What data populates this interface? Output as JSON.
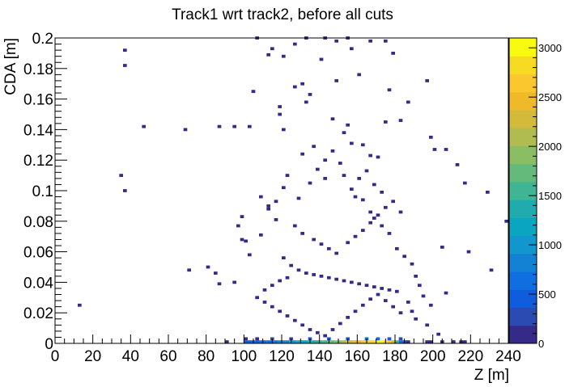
{
  "chart_data": {
    "type": "heatmap",
    "title": "Track1 wrt track2, before all cuts",
    "xlabel": "Z [m]",
    "ylabel": "CDA [m]",
    "xlim": [
      0,
      240
    ],
    "ylim": [
      0,
      0.2
    ],
    "zlim": [
      0,
      3100
    ],
    "x_ticks": [
      "0",
      "20",
      "40",
      "60",
      "80",
      "100",
      "120",
      "140",
      "160",
      "180",
      "200",
      "220",
      "240"
    ],
    "y_ticks": [
      "0",
      "0.02",
      "0.04",
      "0.06",
      "0.08",
      "0.1",
      "0.12",
      "0.14",
      "0.16",
      "0.18",
      "0.2"
    ],
    "z_ticks": [
      "0",
      "500",
      "1000",
      "1500",
      "2000",
      "2500",
      "3000"
    ],
    "bins": {
      "x_width": 2,
      "y_width": 0.002
    },
    "palette": [
      "#352a87",
      "#2b4bb3",
      "#0f5cdd",
      "#0f6fe0",
      "#1283d4",
      "#1197ce",
      "#09a5c1",
      "#20acac",
      "#3fb593",
      "#63ba7a",
      "#8bbd64",
      "#b1bc50",
      "#d3ba3a",
      "#f0b92a",
      "#fbc72e",
      "#f7db22",
      "#f9fb0e"
    ],
    "cells_note": "",
    "cells": [
      [
        101,
        0.001,
        400
      ],
      [
        103,
        0.001,
        450
      ],
      [
        105,
        0.001,
        500
      ],
      [
        107,
        0.001,
        520
      ],
      [
        109,
        0.001,
        560
      ],
      [
        111,
        0.001,
        600
      ],
      [
        113,
        0.001,
        650
      ],
      [
        115,
        0.001,
        700
      ],
      [
        117,
        0.001,
        720
      ],
      [
        119,
        0.001,
        800
      ],
      [
        121,
        0.001,
        850
      ],
      [
        123,
        0.001,
        900
      ],
      [
        125,
        0.001,
        950
      ],
      [
        127,
        0.001,
        1000
      ],
      [
        129,
        0.001,
        1100
      ],
      [
        131,
        0.001,
        1150
      ],
      [
        133,
        0.001,
        1200
      ],
      [
        135,
        0.001,
        1300
      ],
      [
        137,
        0.001,
        1350
      ],
      [
        139,
        0.001,
        1450
      ],
      [
        141,
        0.001,
        1500
      ],
      [
        143,
        0.001,
        1600
      ],
      [
        145,
        0.001,
        1700
      ],
      [
        147,
        0.001,
        1800
      ],
      [
        149,
        0.001,
        1900
      ],
      [
        151,
        0.001,
        2000
      ],
      [
        153,
        0.001,
        2100
      ],
      [
        155,
        0.001,
        2200
      ],
      [
        157,
        0.001,
        2300
      ],
      [
        159,
        0.001,
        2400
      ],
      [
        161,
        0.001,
        2500
      ],
      [
        163,
        0.001,
        2600
      ],
      [
        165,
        0.001,
        2700
      ],
      [
        167,
        0.001,
        2800
      ],
      [
        169,
        0.001,
        2900
      ],
      [
        171,
        0.001,
        3000
      ],
      [
        173,
        0.001,
        2950
      ],
      [
        175,
        0.001,
        2850
      ],
      [
        177,
        0.001,
        2700
      ],
      [
        179,
        0.001,
        2200
      ],
      [
        181,
        0.001,
        1500
      ],
      [
        183,
        0.001,
        700
      ],
      [
        185,
        0.001,
        300
      ],
      [
        187,
        0.001,
        150
      ],
      [
        101,
        0.003,
        150
      ],
      [
        107,
        0.003,
        180
      ],
      [
        115,
        0.003,
        230
      ],
      [
        125,
        0.003,
        300
      ],
      [
        135,
        0.003,
        380
      ],
      [
        145,
        0.003,
        450
      ],
      [
        155,
        0.003,
        520
      ],
      [
        165,
        0.003,
        600
      ],
      [
        171,
        0.003,
        680
      ],
      [
        177,
        0.003,
        520
      ],
      [
        183,
        0.003,
        220
      ],
      [
        91,
        0.001,
        5
      ],
      [
        197,
        0.001,
        10
      ],
      [
        199,
        0.001,
        20
      ],
      [
        205,
        0.001,
        15
      ],
      [
        211,
        0.001,
        10
      ],
      [
        215,
        0.001,
        8
      ],
      [
        217,
        0.001,
        5
      ],
      [
        13,
        0.025,
        2
      ],
      [
        37,
        0.1,
        2
      ],
      [
        35,
        0.11,
        2
      ],
      [
        47,
        0.142,
        2
      ],
      [
        69,
        0.14,
        2
      ],
      [
        87,
        0.142,
        2
      ],
      [
        95,
        0.142,
        2
      ],
      [
        103,
        0.142,
        2
      ],
      [
        37,
        0.182,
        2
      ],
      [
        37,
        0.192,
        2
      ],
      [
        105,
        0.165,
        2
      ],
      [
        119,
        0.15,
        2
      ],
      [
        121,
        0.14,
        2
      ],
      [
        131,
        0.17,
        2
      ],
      [
        133,
        0.158,
        2
      ],
      [
        141,
        0.186,
        2
      ],
      [
        149,
        0.172,
        2
      ],
      [
        155,
        0.143,
        2
      ],
      [
        161,
        0.176,
        2
      ],
      [
        163,
        0.13,
        2
      ],
      [
        167,
        0.123,
        2
      ],
      [
        171,
        0.122,
        2
      ],
      [
        175,
        0.145,
        2
      ],
      [
        177,
        0.166,
        2
      ],
      [
        183,
        0.146,
        2
      ],
      [
        187,
        0.158,
        2
      ],
      [
        197,
        0.172,
        2
      ],
      [
        199,
        0.135,
        2
      ],
      [
        201,
        0.127,
        2
      ],
      [
        207,
        0.127,
        2
      ],
      [
        213,
        0.117,
        2
      ],
      [
        217,
        0.105,
        2
      ],
      [
        229,
        0.099,
        2
      ],
      [
        231,
        0.048,
        2
      ],
      [
        239,
        0.08,
        2
      ],
      [
        241,
        0.047,
        2
      ],
      [
        219,
        0.06,
        2
      ],
      [
        205,
        0.063,
        2
      ],
      [
        207,
        0.033,
        2
      ],
      [
        199,
        0.025,
        2
      ],
      [
        71,
        0.048,
        2
      ],
      [
        81,
        0.05,
        2
      ],
      [
        85,
        0.046,
        2
      ],
      [
        87,
        0.039,
        2
      ],
      [
        95,
        0.04,
        2
      ],
      [
        99,
        0.068,
        2
      ],
      [
        97,
        0.077,
        2
      ],
      [
        99,
        0.083,
        2
      ],
      [
        101,
        0.067,
        2
      ],
      [
        103,
        0.058,
        2
      ],
      [
        109,
        0.071,
        2
      ],
      [
        113,
        0.088,
        2
      ],
      [
        117,
        0.093,
        2
      ],
      [
        121,
        0.102,
        2
      ],
      [
        123,
        0.11,
        2
      ],
      [
        129,
        0.095,
        2
      ],
      [
        135,
        0.105,
        2
      ],
      [
        139,
        0.114,
        2
      ],
      [
        143,
        0.12,
        2
      ],
      [
        147,
        0.126,
        2
      ],
      [
        151,
        0.118,
        2
      ],
      [
        153,
        0.11,
        2
      ],
      [
        157,
        0.101,
        2
      ],
      [
        159,
        0.096,
        2
      ],
      [
        163,
        0.094,
        2
      ],
      [
        167,
        0.086,
        2
      ],
      [
        169,
        0.082,
        2
      ],
      [
        173,
        0.077,
        2
      ],
      [
        177,
        0.072,
        2
      ],
      [
        181,
        0.062,
        2
      ],
      [
        185,
        0.057,
        2
      ],
      [
        189,
        0.052,
        2
      ],
      [
        191,
        0.044,
        2
      ],
      [
        193,
        0.038,
        2
      ],
      [
        195,
        0.031,
        2
      ],
      [
        187,
        0.027,
        3
      ],
      [
        189,
        0.021,
        5
      ],
      [
        191,
        0.016,
        8
      ],
      [
        197,
        0.012,
        6
      ],
      [
        203,
        0.006,
        8
      ],
      [
        121,
        0.056,
        3
      ],
      [
        125,
        0.051,
        3
      ],
      [
        129,
        0.048,
        4
      ],
      [
        133,
        0.046,
        5
      ],
      [
        137,
        0.045,
        6
      ],
      [
        141,
        0.044,
        6
      ],
      [
        145,
        0.043,
        7
      ],
      [
        149,
        0.042,
        8
      ],
      [
        153,
        0.041,
        8
      ],
      [
        157,
        0.04,
        9
      ],
      [
        161,
        0.039,
        9
      ],
      [
        165,
        0.038,
        10
      ],
      [
        169,
        0.037,
        10
      ],
      [
        173,
        0.036,
        9
      ],
      [
        177,
        0.035,
        8
      ],
      [
        181,
        0.034,
        7
      ],
      [
        111,
        0.035,
        4
      ],
      [
        115,
        0.038,
        4
      ],
      [
        119,
        0.041,
        4
      ],
      [
        123,
        0.043,
        4
      ],
      [
        107,
        0.03,
        6
      ],
      [
        111,
        0.027,
        8
      ],
      [
        115,
        0.024,
        10
      ],
      [
        119,
        0.021,
        12
      ],
      [
        123,
        0.018,
        14
      ],
      [
        127,
        0.015,
        16
      ],
      [
        131,
        0.012,
        20
      ],
      [
        135,
        0.009,
        25
      ],
      [
        139,
        0.007,
        30
      ],
      [
        143,
        0.005,
        35
      ],
      [
        147,
        0.009,
        30
      ],
      [
        151,
        0.013,
        25
      ],
      [
        155,
        0.017,
        20
      ],
      [
        159,
        0.021,
        15
      ],
      [
        163,
        0.025,
        12
      ],
      [
        167,
        0.029,
        10
      ],
      [
        171,
        0.032,
        8
      ],
      [
        175,
        0.028,
        10
      ],
      [
        179,
        0.024,
        12
      ],
      [
        183,
        0.02,
        8
      ],
      [
        119,
        0.155,
        2
      ],
      [
        127,
        0.168,
        2
      ],
      [
        135,
        0.163,
        2
      ],
      [
        147,
        0.147,
        2
      ],
      [
        153,
        0.138,
        2
      ],
      [
        157,
        0.131,
        2
      ],
      [
        131,
        0.124,
        2
      ],
      [
        137,
        0.129,
        2
      ],
      [
        143,
        0.108,
        2
      ],
      [
        161,
        0.108,
        2
      ],
      [
        165,
        0.113,
        2
      ],
      [
        169,
        0.104,
        2
      ],
      [
        173,
        0.099,
        2
      ],
      [
        109,
        0.096,
        2
      ],
      [
        113,
        0.09,
        2
      ],
      [
        117,
        0.081,
        2
      ],
      [
        127,
        0.077,
        2
      ],
      [
        131,
        0.072,
        2
      ],
      [
        137,
        0.068,
        2
      ],
      [
        141,
        0.065,
        2
      ],
      [
        145,
        0.062,
        2
      ],
      [
        149,
        0.059,
        2
      ],
      [
        155,
        0.066,
        2
      ],
      [
        159,
        0.07,
        2
      ],
      [
        163,
        0.074,
        2
      ],
      [
        167,
        0.079,
        2
      ],
      [
        171,
        0.084,
        2
      ],
      [
        175,
        0.089,
        2
      ],
      [
        179,
        0.093,
        2
      ],
      [
        183,
        0.086,
        2
      ],
      [
        107,
        0.2,
        2
      ],
      [
        127,
        0.196,
        2
      ],
      [
        133,
        0.2,
        2
      ],
      [
        143,
        0.2,
        2
      ],
      [
        149,
        0.198,
        2
      ],
      [
        155,
        0.2,
        2
      ],
      [
        157,
        0.193,
        2
      ],
      [
        167,
        0.198,
        2
      ],
      [
        175,
        0.198,
        2
      ],
      [
        179,
        0.19,
        2
      ],
      [
        121,
        0.188,
        2
      ],
      [
        115,
        0.193,
        2
      ],
      [
        113,
        0.189,
        2
      ]
    ]
  }
}
